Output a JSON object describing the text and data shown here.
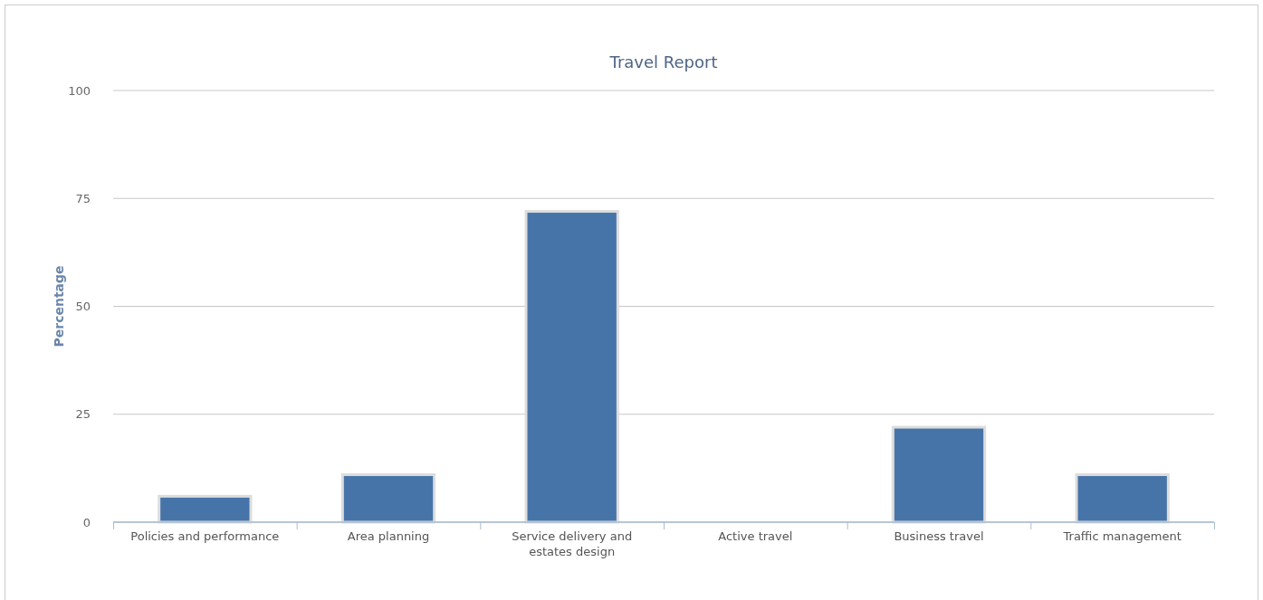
{
  "chart_data": {
    "type": "bar",
    "title": "Travel Report",
    "ylabel": "Percentage",
    "categories": [
      "Policies and performance",
      "Area planning",
      "Service delivery and estates design",
      "Active travel",
      "Business travel",
      "Traffic management"
    ],
    "values": [
      6,
      11,
      72,
      0,
      22,
      11
    ],
    "color": "#4674a9",
    "ylim": [
      0,
      100
    ],
    "yticks": [
      0,
      25,
      50,
      75,
      100
    ],
    "grid": "y"
  }
}
